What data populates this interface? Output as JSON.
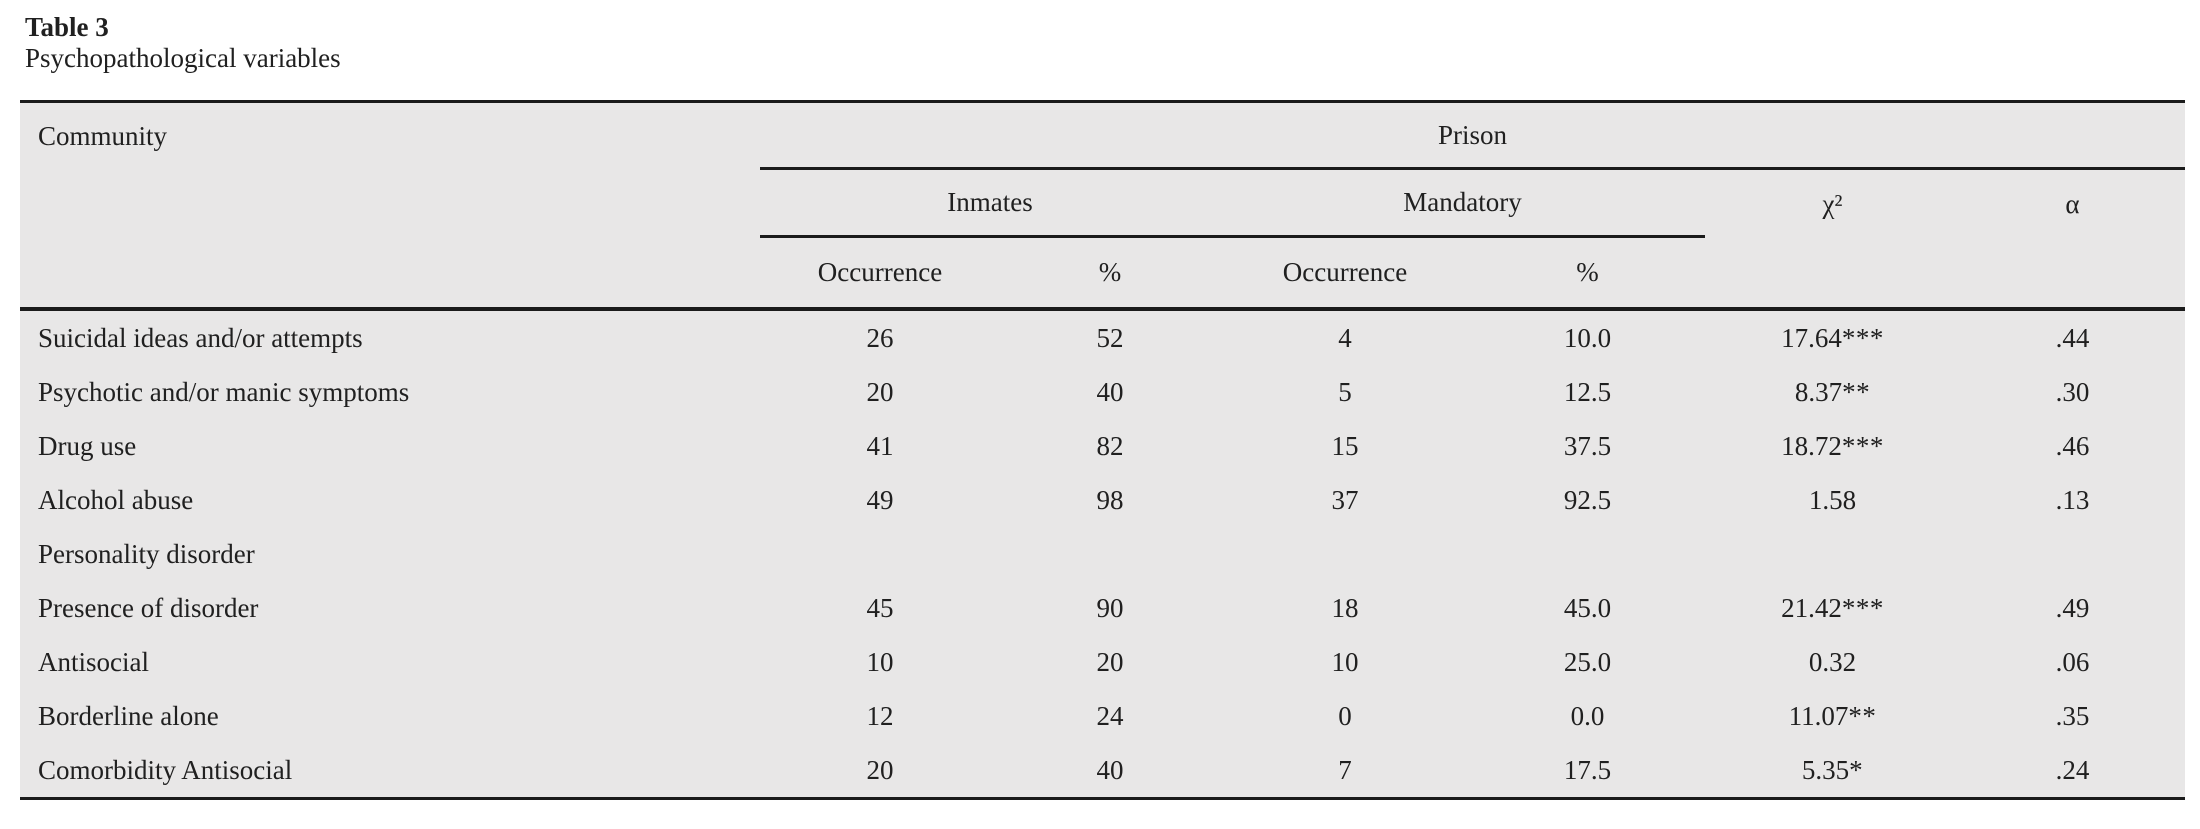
{
  "title": "Table 3",
  "caption": "Psychopathological variables",
  "colors": {
    "table_background": "#e8e7e7",
    "rule": "#1b1b1b",
    "text": "#202020",
    "page_background": "#ffffff"
  },
  "table": {
    "header": {
      "community": "Community",
      "prison": "Prison",
      "inmates": "Inmates",
      "mandatory": "Mandatory",
      "chi_square": "χ²",
      "alpha": "α",
      "inmates_occurrence": "Occurrence",
      "inmates_pct": "%",
      "mandatory_occurrence": "Occurrence",
      "mandatory_pct": "%"
    },
    "rows": [
      {
        "label": "Suicidal ideas and/or attempts",
        "inmates_occurrence": "26",
        "inmates_pct": "52",
        "mandatory_occurrence": "4",
        "mandatory_pct": "10.0",
        "chi_square": "17.64",
        "chi_square_stars": "***",
        "alpha": ".44"
      },
      {
        "label": "Psychotic and/or manic symptoms",
        "inmates_occurrence": "20",
        "inmates_pct": "40",
        "mandatory_occurrence": "5",
        "mandatory_pct": "12.5",
        "chi_square": "8.37",
        "chi_square_stars": "**",
        "alpha": ".30"
      },
      {
        "label": "Drug use",
        "inmates_occurrence": "41",
        "inmates_pct": "82",
        "mandatory_occurrence": "15",
        "mandatory_pct": "37.5",
        "chi_square": "18.72",
        "chi_square_stars": "***",
        "alpha": ".46"
      },
      {
        "label": "Alcohol abuse",
        "inmates_occurrence": "49",
        "inmates_pct": "98",
        "mandatory_occurrence": "37",
        "mandatory_pct": "92.5",
        "chi_square": "1.58",
        "chi_square_stars": "",
        "alpha": ".13"
      },
      {
        "label": "Personality disorder",
        "inmates_occurrence": "",
        "inmates_pct": "",
        "mandatory_occurrence": "",
        "mandatory_pct": "",
        "chi_square": "",
        "chi_square_stars": "",
        "alpha": ""
      },
      {
        "label": "Presence of disorder",
        "inmates_occurrence": "45",
        "inmates_pct": "90",
        "mandatory_occurrence": "18",
        "mandatory_pct": "45.0",
        "chi_square": "21.42",
        "chi_square_stars": "***",
        "alpha": ".49"
      },
      {
        "label": "Antisocial",
        "inmates_occurrence": "10",
        "inmates_pct": "20",
        "mandatory_occurrence": "10",
        "mandatory_pct": "25.0",
        "chi_square": "0.32",
        "chi_square_stars": "",
        "alpha": ".06"
      },
      {
        "label": "Borderline alone",
        "inmates_occurrence": "12",
        "inmates_pct": "24",
        "mandatory_occurrence": "0",
        "mandatory_pct": "0.0",
        "chi_square": "11.07",
        "chi_square_stars": "**",
        "alpha": ".35"
      },
      {
        "label": "Comorbidity Antisocial",
        "inmates_occurrence": "20",
        "inmates_pct": "40",
        "mandatory_occurrence": "7",
        "mandatory_pct": "17.5",
        "chi_square": "5.35",
        "chi_square_stars": "*",
        "alpha": ".24"
      }
    ]
  }
}
